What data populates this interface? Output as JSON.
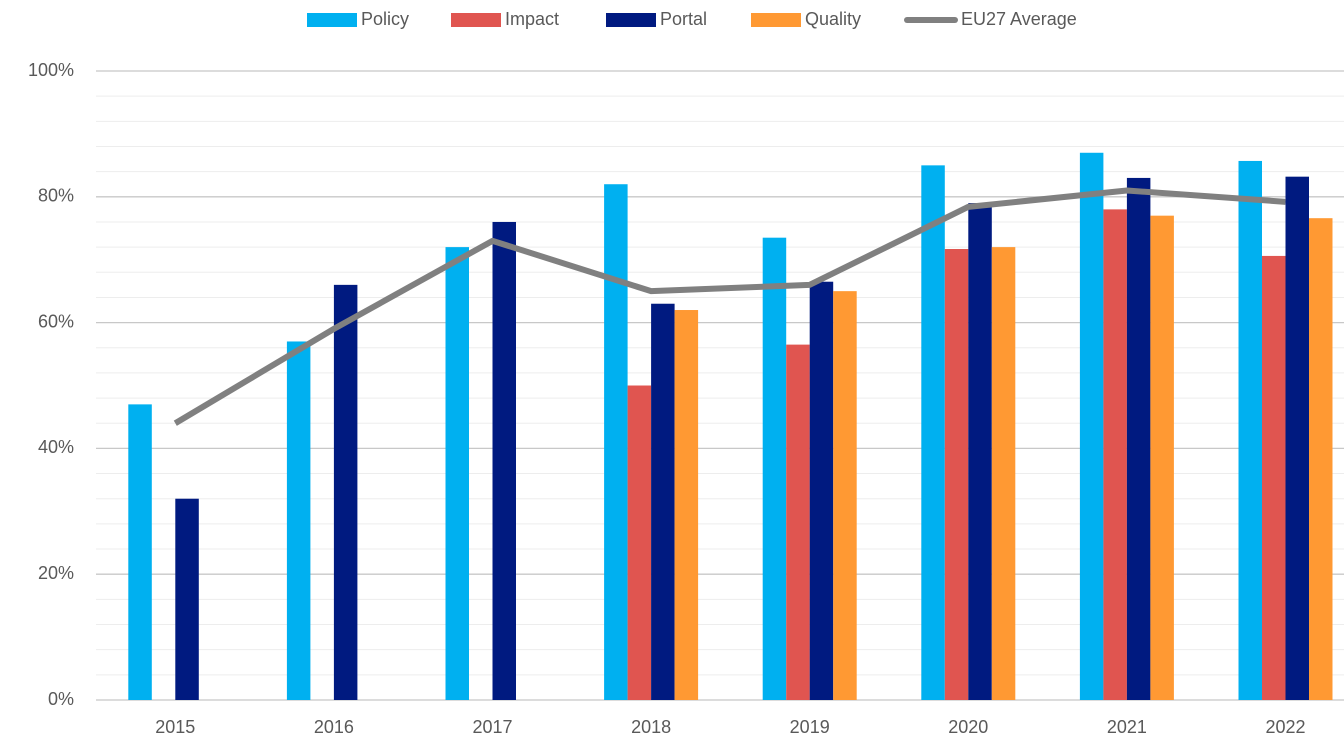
{
  "chart_data": {
    "type": "bar",
    "categories": [
      "2015",
      "2016",
      "2017",
      "2018",
      "2019",
      "2020",
      "2021",
      "2022"
    ],
    "series": [
      {
        "name": "Policy",
        "color": "#00b0f0",
        "values": [
          47,
          57,
          72,
          82,
          73.5,
          85,
          87,
          85.7
        ]
      },
      {
        "name": "Impact",
        "color": "#e05550",
        "values": [
          null,
          null,
          null,
          50,
          56.5,
          71.7,
          78,
          70.6
        ]
      },
      {
        "name": "Portal",
        "color": "#001a80",
        "values": [
          32,
          66,
          76,
          63,
          66.5,
          79,
          83,
          83.2
        ]
      },
      {
        "name": "Quality",
        "color": "#ff9933",
        "values": [
          null,
          null,
          null,
          62,
          65,
          72,
          77,
          76.6
        ]
      },
      {
        "name": "EU27 Average",
        "type": "line",
        "color": "#808080",
        "values": [
          44,
          59,
          73,
          65,
          66,
          78.4,
          81,
          79.2
        ]
      }
    ],
    "ylim": [
      0,
      100
    ],
    "yticks": [
      {
        "value": 0,
        "label": "0%"
      },
      {
        "value": 20,
        "label": "20%"
      },
      {
        "value": 40,
        "label": "40%"
      },
      {
        "value": 60,
        "label": "60%"
      },
      {
        "value": 80,
        "label": "80%"
      },
      {
        "value": 100,
        "label": "100%"
      }
    ],
    "minor_yticks": [
      4,
      8,
      12,
      16,
      24,
      28,
      32,
      36,
      44,
      48,
      52,
      56,
      64,
      68,
      72,
      76,
      84,
      88,
      92,
      96
    ],
    "grid": true,
    "legend": "top"
  }
}
